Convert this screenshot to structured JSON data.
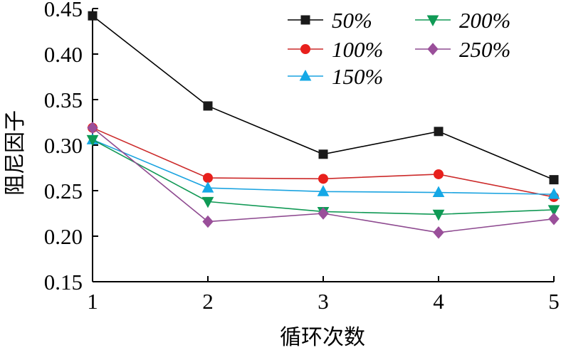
{
  "chart_data": {
    "type": "line",
    "title": "",
    "xlabel": "循环次数",
    "ylabel": "阻尼因子",
    "categories": [
      1,
      2,
      3,
      4,
      5
    ],
    "x_tick_labels": [
      "1",
      "2",
      "3",
      "4",
      "5"
    ],
    "xlim": [
      1,
      5
    ],
    "ylim": [
      0.15,
      0.45
    ],
    "y_ticks": [
      0.15,
      0.2,
      0.25,
      0.3,
      0.35,
      0.4,
      0.45
    ],
    "y_tick_labels": [
      "0.15",
      "0.20",
      "0.25",
      "0.30",
      "0.35",
      "0.40",
      "0.45"
    ],
    "grid": false,
    "legend_position": "top-right",
    "series": [
      {
        "name": "50%",
        "marker": "square",
        "color": "#000000",
        "marker_color": "#1a1a1a",
        "values": [
          0.442,
          0.343,
          0.29,
          0.315,
          0.262
        ]
      },
      {
        "name": "100%",
        "marker": "circle",
        "color": "#cc2a2a",
        "marker_color": "#e8201c",
        "values": [
          0.319,
          0.264,
          0.263,
          0.268,
          0.243
        ]
      },
      {
        "name": "150%",
        "marker": "triangle-up",
        "color": "#1aa3e0",
        "marker_color": "#15a8e6",
        "values": [
          0.306,
          0.253,
          0.249,
          0.248,
          0.246
        ]
      },
      {
        "name": "200%",
        "marker": "triangle-down",
        "color": "#119955",
        "marker_color": "#0f9a55",
        "values": [
          0.306,
          0.238,
          0.227,
          0.224,
          0.229
        ]
      },
      {
        "name": "250%",
        "marker": "diamond",
        "color": "#8e4a90",
        "marker_color": "#9a4f9a",
        "values": [
          0.319,
          0.216,
          0.225,
          0.204,
          0.219
        ]
      }
    ]
  }
}
